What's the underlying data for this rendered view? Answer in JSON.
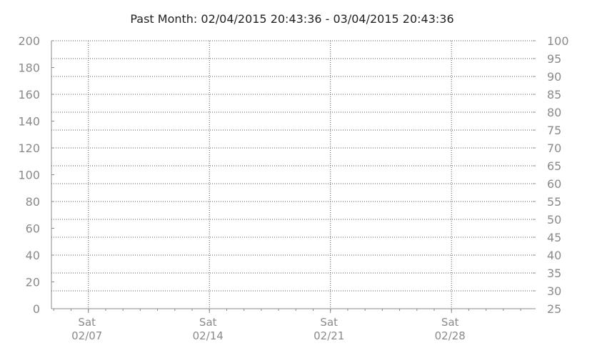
{
  "chart_data": {
    "type": "line",
    "title": "Past Month: 02/04/2015 20:43:36 - 03/04/2015 20:43:36",
    "x_range": [
      "02/04/2015 20:43:36",
      "03/04/2015 20:43:36"
    ],
    "x_ticks": [
      {
        "day": "Sat",
        "date": "02/07",
        "at": "2015-02-07"
      },
      {
        "day": "Sat",
        "date": "02/14",
        "at": "2015-02-14"
      },
      {
        "day": "Sat",
        "date": "02/21",
        "at": "2015-02-21"
      },
      {
        "day": "Sat",
        "date": "02/28",
        "at": "2015-02-28"
      }
    ],
    "y_left": {
      "min": 0,
      "max": 200,
      "ticks": [
        "0",
        "20",
        "40",
        "60",
        "80",
        "100",
        "120",
        "140",
        "160",
        "180",
        "200"
      ]
    },
    "y_right": {
      "min": 25,
      "max": 100,
      "ticks": [
        "25",
        "30",
        "35",
        "40",
        "45",
        "50",
        "55",
        "60",
        "65",
        "70",
        "75",
        "80",
        "85",
        "90",
        "95",
        "100"
      ]
    },
    "grid": true,
    "series": [],
    "colors": {
      "grid": "#555555",
      "axis": "#888888",
      "title": "#222222",
      "labels": "#8a8a8a"
    }
  }
}
